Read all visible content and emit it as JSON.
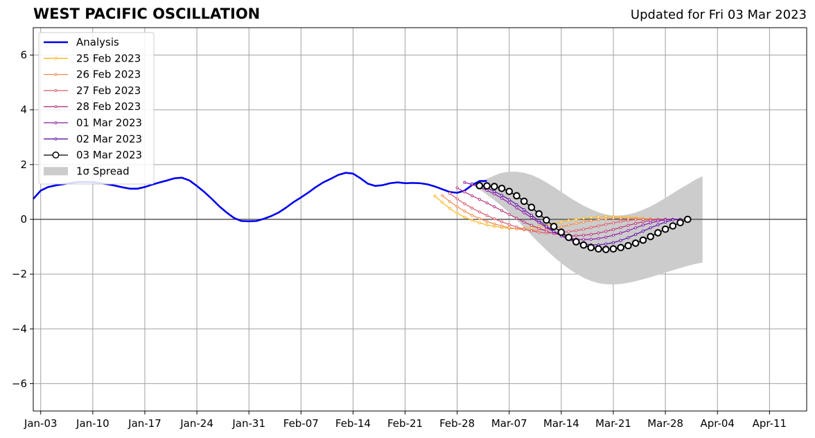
{
  "title": "WEST PACIFIC OSCILLATION",
  "subtitle": "Updated for Fri 03 Mar 2023",
  "chart_data": {
    "type": "line",
    "xlim": [
      "2023-01-02",
      "2023-04-16"
    ],
    "ylim": [
      -7,
      7
    ],
    "yticks": [
      -6,
      -4,
      -2,
      0,
      2,
      4,
      6
    ],
    "ytick_labels": [
      "−6",
      "−4",
      "−2",
      "0",
      "2",
      "4",
      "6"
    ],
    "xticks": [
      "2023-01-03",
      "2023-01-10",
      "2023-01-17",
      "2023-01-24",
      "2023-01-31",
      "2023-02-07",
      "2023-02-14",
      "2023-02-21",
      "2023-02-28",
      "2023-03-07",
      "2023-03-14",
      "2023-03-21",
      "2023-03-28",
      "2023-04-04",
      "2023-04-11"
    ],
    "xtick_labels": [
      "Jan-03",
      "Jan-10",
      "Jan-17",
      "Jan-24",
      "Jan-31",
      "Feb-07",
      "Feb-14",
      "Feb-21",
      "Feb-28",
      "Mar-07",
      "Mar-14",
      "Mar-21",
      "Mar-28",
      "Apr-04",
      "Apr-11"
    ],
    "grid": true,
    "zero_line": true,
    "legend_position": "top-left",
    "analysis": {
      "name": "Analysis",
      "color": "#0000ee",
      "start": "2023-01-02",
      "values": [
        0.75,
        1.05,
        1.18,
        1.24,
        1.28,
        1.33,
        1.36,
        1.37,
        1.36,
        1.32,
        1.28,
        1.23,
        1.17,
        1.12,
        1.12,
        1.18,
        1.27,
        1.35,
        1.42,
        1.5,
        1.52,
        1.42,
        1.22,
        1.0,
        0.75,
        0.48,
        0.25,
        0.05,
        -0.06,
        -0.07,
        -0.06,
        0.02,
        0.12,
        0.25,
        0.43,
        0.63,
        0.8,
        0.98,
        1.18,
        1.35,
        1.48,
        1.62,
        1.7,
        1.67,
        1.5,
        1.3,
        1.22,
        1.25,
        1.32,
        1.35,
        1.32,
        1.33,
        1.32,
        1.28,
        1.2,
        1.1,
        1.0,
        0.97,
        1.05,
        1.25,
        1.4,
        1.4
      ]
    },
    "forecasts": [
      {
        "name": "25 Feb 2023",
        "color": "#f9b71e",
        "start": "2023-02-25",
        "values": [
          0.85,
          0.62,
          0.4,
          0.22,
          0.08,
          -0.03,
          -0.13,
          -0.2,
          -0.26,
          -0.3,
          -0.33,
          -0.34,
          -0.33,
          -0.31,
          -0.27,
          -0.22,
          -0.16,
          -0.1,
          -0.04,
          0.0,
          0.04,
          0.07,
          0.09,
          0.1,
          0.1,
          0.09,
          0.08,
          0.06,
          0.04,
          0.02
        ]
      },
      {
        "name": "26 Feb 2023",
        "color": "#f48a4b",
        "start": "2023-02-26",
        "values": [
          0.87,
          0.65,
          0.46,
          0.3,
          0.15,
          0.03,
          -0.08,
          -0.17,
          -0.24,
          -0.3,
          -0.35,
          -0.38,
          -0.4,
          -0.39,
          -0.36,
          -0.32,
          -0.27,
          -0.21,
          -0.15,
          -0.1,
          -0.05,
          -0.01,
          0.02,
          0.04,
          0.04,
          0.03,
          0.02,
          0.0,
          0.0,
          0.0
        ]
      },
      {
        "name": "27 Feb 2023",
        "color": "#db5a6b",
        "start": "2023-02-27",
        "values": [
          0.95,
          0.75,
          0.57,
          0.41,
          0.27,
          0.14,
          0.02,
          -0.09,
          -0.19,
          -0.28,
          -0.36,
          -0.42,
          -0.47,
          -0.5,
          -0.5,
          -0.48,
          -0.45,
          -0.41,
          -0.36,
          -0.3,
          -0.24,
          -0.18,
          -0.13,
          -0.08,
          -0.04,
          -0.01,
          0.0,
          0.0,
          0.0,
          0.0
        ]
      },
      {
        "name": "28 Feb 2023",
        "color": "#b5367a",
        "start": "2023-02-28",
        "values": [
          1.15,
          1.0,
          0.86,
          0.73,
          0.6,
          0.46,
          0.32,
          0.18,
          0.04,
          -0.1,
          -0.22,
          -0.33,
          -0.43,
          -0.52,
          -0.57,
          -0.6,
          -0.6,
          -0.58,
          -0.55,
          -0.5,
          -0.44,
          -0.37,
          -0.3,
          -0.22,
          -0.15,
          -0.09,
          -0.04,
          -0.01,
          0.0,
          0.0
        ]
      },
      {
        "name": "01 Mar 2023",
        "color": "#8c1aa4",
        "start": "2023-03-01",
        "values": [
          1.35,
          1.27,
          1.17,
          1.06,
          0.93,
          0.77,
          0.6,
          0.42,
          0.24,
          0.06,
          -0.12,
          -0.3,
          -0.46,
          -0.59,
          -0.68,
          -0.73,
          -0.74,
          -0.73,
          -0.7,
          -0.65,
          -0.58,
          -0.5,
          -0.41,
          -0.31,
          -0.21,
          -0.13,
          -0.06,
          -0.02,
          0.0,
          0.0
        ]
      },
      {
        "name": "02 Mar 2023",
        "color": "#5a12a3",
        "start": "2023-03-02",
        "values": [
          1.3,
          1.24,
          1.15,
          1.02,
          0.88,
          0.72,
          0.54,
          0.35,
          0.15,
          -0.05,
          -0.25,
          -0.44,
          -0.6,
          -0.74,
          -0.84,
          -0.9,
          -0.93,
          -0.93,
          -0.9,
          -0.85,
          -0.77,
          -0.67,
          -0.55,
          -0.43,
          -0.31,
          -0.2,
          -0.1,
          -0.02,
          0.0
        ]
      },
      {
        "name": "03 Mar 2023",
        "color": "#000000",
        "start": "2023-03-03",
        "values": [
          1.23,
          1.22,
          1.2,
          1.13,
          1.02,
          0.86,
          0.66,
          0.44,
          0.2,
          -0.03,
          -0.26,
          -0.47,
          -0.66,
          -0.82,
          -0.94,
          -1.03,
          -1.08,
          -1.1,
          -1.08,
          -1.03,
          -0.96,
          -0.87,
          -0.76,
          -0.63,
          -0.49,
          -0.36,
          -0.24,
          -0.12,
          0.0
        ]
      }
    ],
    "spread": {
      "name": "1σ Spread",
      "color": "#cccccc",
      "start": "2023-03-03",
      "upper": [
        1.35,
        1.48,
        1.6,
        1.7,
        1.74,
        1.74,
        1.7,
        1.62,
        1.5,
        1.35,
        1.18,
        1.0,
        0.82,
        0.65,
        0.5,
        0.37,
        0.26,
        0.18,
        0.14,
        0.14,
        0.18,
        0.25,
        0.35,
        0.47,
        0.62,
        0.78,
        0.95,
        1.12,
        1.28,
        1.44,
        1.58
      ],
      "lower": [
        1.1,
        0.9,
        0.7,
        0.48,
        0.24,
        -0.02,
        -0.3,
        -0.58,
        -0.86,
        -1.12,
        -1.37,
        -1.6,
        -1.8,
        -1.98,
        -2.13,
        -2.25,
        -2.33,
        -2.37,
        -2.38,
        -2.36,
        -2.32,
        -2.26,
        -2.19,
        -2.11,
        -2.03,
        -1.94,
        -1.86,
        -1.78,
        -1.7,
        -1.63,
        -1.58
      ]
    }
  }
}
